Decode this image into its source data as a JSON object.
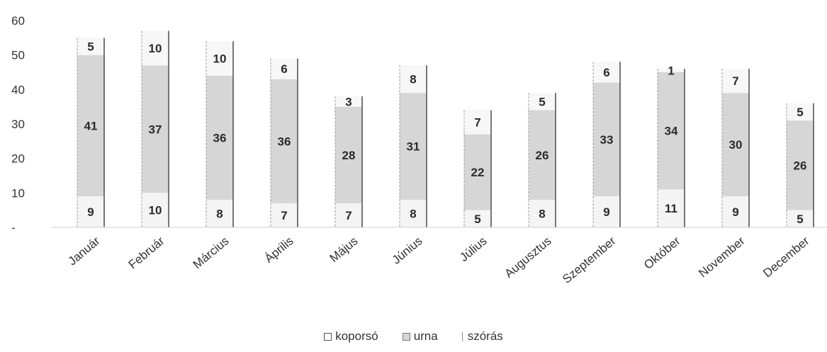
{
  "chart_data": {
    "type": "bar",
    "stacked": true,
    "categories": [
      "Január",
      "Február",
      "Március",
      "Április",
      "Május",
      "Június",
      "Július",
      "Augusztus",
      "Szeptember",
      "Október",
      "November",
      "December"
    ],
    "series": [
      {
        "name": "koporsó",
        "values": [
          9,
          10,
          8,
          7,
          7,
          8,
          5,
          8,
          9,
          11,
          9,
          5
        ]
      },
      {
        "name": "urna",
        "values": [
          41,
          37,
          36,
          36,
          28,
          31,
          22,
          26,
          33,
          34,
          30,
          26
        ]
      },
      {
        "name": "szórás",
        "values": [
          5,
          10,
          10,
          6,
          3,
          8,
          7,
          5,
          6,
          1,
          7,
          5
        ]
      }
    ],
    "y_ticks": [
      "-",
      "10",
      "20",
      "30",
      "40",
      "50",
      "60"
    ],
    "ylim": [
      0,
      60
    ],
    "legend_position": "bottom",
    "colors": {
      "koporso": "#f4f4f4",
      "urna": "#d6d6d6",
      "szoras": "#f7f7f7",
      "edge": "#555555"
    },
    "title": "",
    "xlabel": "",
    "ylabel": ""
  }
}
